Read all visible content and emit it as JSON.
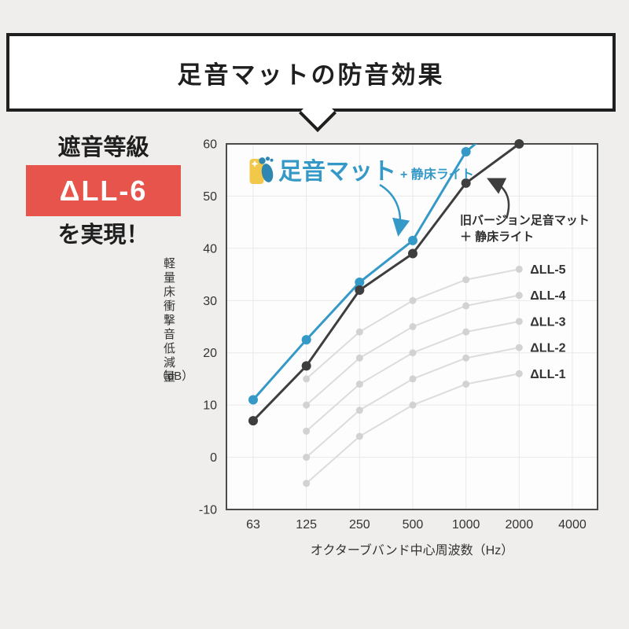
{
  "title_banner": {
    "text": "足音マットの防音効果"
  },
  "grade_callout": {
    "line1": "遮音等級",
    "grade": "ΔLL-6",
    "line2": "を実現！"
  },
  "legend": {
    "product": "足音マット",
    "addon": "+ 静床ライト",
    "icon": "footprint-icon"
  },
  "old_version_label": {
    "line1": "旧バージョン足音マット",
    "line2": "＋ 静床ライト"
  },
  "colors": {
    "background": "#efeeec",
    "banner_border": "#1f1f1f",
    "badge_red": "#e7544b",
    "brand_blue": "#3599c8",
    "old_version_dark": "#3e3e3e",
    "reference_gray": "#d7d7d7"
  },
  "chart_data": {
    "type": "line",
    "xlabel": "オクターブバンド中心周波数（Hz）",
    "ylabel": "軽量床衝撃音低減量",
    "ylabel_unit": "（dB）",
    "categories": [
      63,
      125,
      250,
      500,
      1000,
      2000,
      4000
    ],
    "ylim": [
      -10,
      60
    ],
    "y_ticks": [
      60,
      50,
      40,
      30,
      20,
      10,
      0,
      -10
    ],
    "grid": true,
    "legend_position": "top-left-inside",
    "series": [
      {
        "name": "足音マット＋静床ライト",
        "role": "main",
        "color": "#3599c8",
        "x": [
          63,
          125,
          250,
          500,
          1000
        ],
        "values": [
          11,
          22.5,
          33.5,
          41.5,
          58.5
        ],
        "clipped_extension": {
          "x": 2000,
          "value": 67
        }
      },
      {
        "name": "旧バージョン足音マット＋静床ライト",
        "role": "main",
        "color": "#3e3e3e",
        "x": [
          63,
          125,
          250,
          500,
          1000,
          2000
        ],
        "values": [
          7,
          17.5,
          32,
          39,
          52.5,
          60
        ]
      },
      {
        "name": "ΔLL-5",
        "role": "reference",
        "color": "#d7d7d7",
        "end_label": "ΔLL-5",
        "x": [
          125,
          250,
          500,
          1000,
          2000
        ],
        "values": [
          15,
          24,
          30,
          34,
          36
        ]
      },
      {
        "name": "ΔLL-4",
        "role": "reference",
        "color": "#d7d7d7",
        "end_label": "ΔLL-4",
        "x": [
          125,
          250,
          500,
          1000,
          2000
        ],
        "values": [
          10,
          19,
          25,
          29,
          31
        ]
      },
      {
        "name": "ΔLL-3",
        "role": "reference",
        "color": "#d7d7d7",
        "end_label": "ΔLL-3",
        "x": [
          125,
          250,
          500,
          1000,
          2000
        ],
        "values": [
          5,
          14,
          20,
          24,
          26
        ]
      },
      {
        "name": "ΔLL-2",
        "role": "reference",
        "color": "#d7d7d7",
        "end_label": "ΔLL-2",
        "x": [
          125,
          250,
          500,
          1000,
          2000
        ],
        "values": [
          0,
          9,
          15,
          19,
          21
        ]
      },
      {
        "name": "ΔLL-1",
        "role": "reference",
        "color": "#d7d7d7",
        "end_label": "ΔLL-1",
        "x": [
          125,
          250,
          500,
          1000,
          2000
        ],
        "values": [
          -5,
          4,
          10,
          14,
          16
        ]
      }
    ]
  }
}
